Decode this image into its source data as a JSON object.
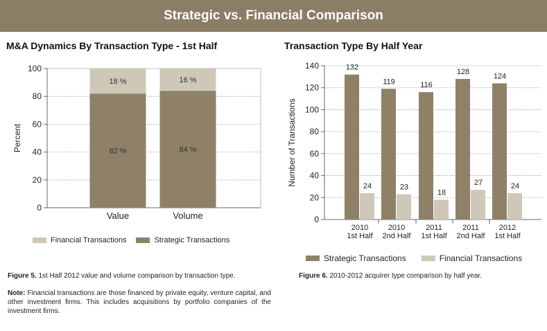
{
  "banner": {
    "title": "Strategic vs. Financial Comparison"
  },
  "colors": {
    "strategic": "#8e8168",
    "financial": "#cfc8b8",
    "banner": "#8a7e65"
  },
  "legend": {
    "financial": "Financial Transactions",
    "strategic": "Strategic Transactions"
  },
  "captions": {
    "fig5_label": "Figure 5.",
    "fig5_text": " 1st Half 2012 value and volume comparison by transaction type.",
    "note_label": "Note:",
    "note_text": " Financial transactions are those financed by private equity, venture capital, and other investment firms. This includes acquisitions by portfolio companies of the investment firms.",
    "fig6_label": "Figure 6.",
    "fig6_text": " 2010-2012 acquirer type comparison by half year."
  },
  "chart_data": [
    {
      "type": "bar",
      "stacked": true,
      "title": "M&A Dynamics By Transaction Type  -  1st Half",
      "categories": [
        "Value",
        "Volume"
      ],
      "series": [
        {
          "name": "Strategic Transactions",
          "values": [
            82,
            84
          ],
          "labels": [
            "82 %",
            "84 %"
          ]
        },
        {
          "name": "Financial Transactions",
          "values": [
            18,
            16
          ],
          "labels": [
            "18 %",
            "16 %"
          ]
        }
      ],
      "xlabel": "",
      "ylabel": "Percent",
      "ylim": [
        0,
        100
      ],
      "yticks": [
        0,
        20,
        40,
        60,
        80,
        100
      ],
      "grid": true,
      "legend": "bottom"
    },
    {
      "type": "bar",
      "stacked": false,
      "title": "Transaction Type By Half Year",
      "categories": [
        [
          "2010",
          "1st Half"
        ],
        [
          "2010",
          "2nd Half"
        ],
        [
          "2011",
          "1st Half"
        ],
        [
          "2011",
          "2nd Half"
        ],
        [
          "2012",
          "1st Half"
        ]
      ],
      "series": [
        {
          "name": "Strategic Transactions",
          "values": [
            132,
            119,
            116,
            128,
            124
          ]
        },
        {
          "name": "Financial Transactions",
          "values": [
            24,
            23,
            18,
            27,
            24
          ]
        }
      ],
      "xlabel": "",
      "ylabel": "Number of Transactions",
      "ylim": [
        0,
        140
      ],
      "yticks": [
        0,
        20,
        40,
        60,
        80,
        100,
        120,
        140
      ],
      "grid": true,
      "legend": "bottom"
    }
  ]
}
